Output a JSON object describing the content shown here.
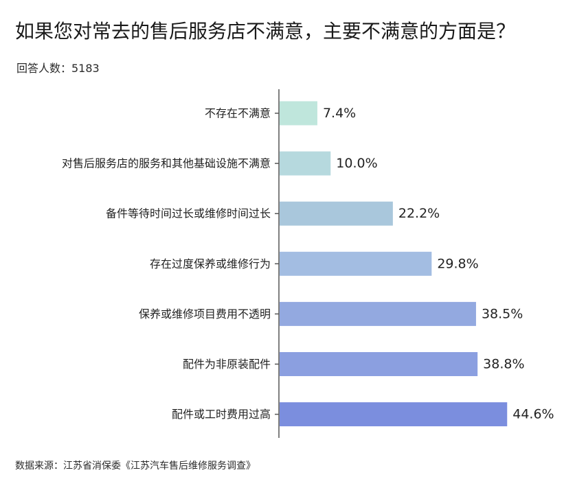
{
  "header": {
    "title": "如果您对常去的售后服务店不满意，主要不满意的方面是？",
    "respondents": "回答人数：5183"
  },
  "footer": {
    "source": "数据来源：江苏省消保委《江苏汽车售后维修服务调查》"
  },
  "chart_data": {
    "type": "bar",
    "orientation": "horizontal",
    "title": "如果您对常去的售后服务店不满意，主要不满意的方面是？",
    "categories": [
      "不存在不满意",
      "对售后服务店的服务和其他基础设施不满意",
      "备件等待时间过长或维修时间过长",
      "存在过度保养或维修行为",
      "保养或维修项目费用不透明",
      "配件为非原装配件",
      "配件或工时费用过高"
    ],
    "values": [
      7.4,
      10.0,
      22.2,
      29.8,
      38.5,
      38.8,
      44.6
    ],
    "value_labels": [
      "7.4%",
      "10.0%",
      "22.2%",
      "29.8%",
      "38.5%",
      "38.8%",
      "44.6%"
    ],
    "colors": [
      "#bfe6dc",
      "#b6d9de",
      "#a9c7dc",
      "#a3bde2",
      "#93a9e0",
      "#8b9fe0",
      "#7b8ede"
    ],
    "xlim": [
      0,
      50
    ],
    "grid": false,
    "legend": "none"
  }
}
